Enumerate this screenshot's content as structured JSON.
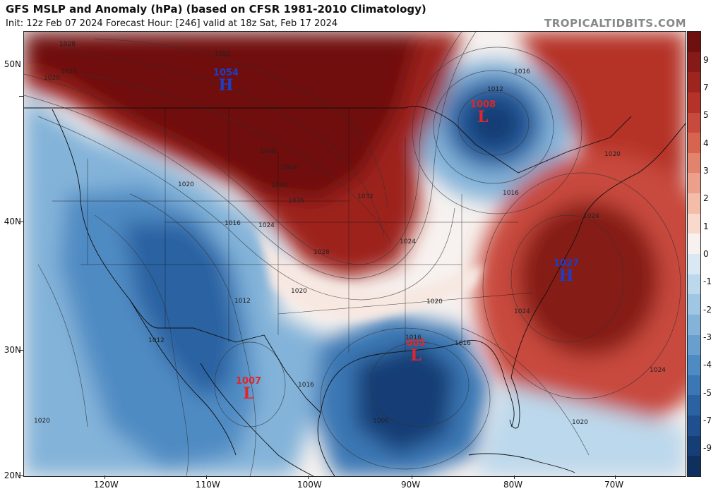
{
  "header": {
    "title": "GFS MSLP and Anomaly (hPa) (based on CFSR 1981-2010 Climatology)",
    "subtitle": "Init: 12z Feb 07 2024   Forecast Hour: [246]   valid at 18z Sat, Feb 17 2024",
    "site": "TROPICALTIDBITS.COM"
  },
  "colors": {
    "strong_positive": "#7a1414",
    "positive": "#c84a3c",
    "weak_positive": "#f2b9a5",
    "neutral": "#f7f2ef",
    "weak_negative": "#a9cce6",
    "negative": "#4a8ac4",
    "strong_negative": "#1c4d8c"
  },
  "colorbar": {
    "labels": [
      "9",
      "7",
      "5",
      "4",
      "3",
      "2",
      "1",
      "0",
      "-1",
      "-2",
      "-3",
      "-4",
      "-5",
      "-7",
      "-9"
    ],
    "segment_colors": [
      "#6f1010",
      "#861a18",
      "#9d241f",
      "#b53228",
      "#c84a3c",
      "#d66550",
      "#e2836d",
      "#ec9f8b",
      "#f3bda9",
      "#f8d9cc",
      "#f7f2ef",
      "#d9e8f3",
      "#bcd8ec",
      "#9fc6e3",
      "#83b3d9",
      "#689fcf",
      "#4f8bc3",
      "#3b77b4",
      "#2b62a2",
      "#1f4f8e",
      "#163e76",
      "#0f2f5e"
    ]
  },
  "axes": {
    "lat_labels": [
      "50N",
      "40N",
      "30N",
      "20N"
    ],
    "lon_labels": [
      "120W",
      "110W",
      "100W",
      "90W",
      "80W",
      "70W"
    ]
  },
  "centers": [
    {
      "type": "H",
      "value": "1054",
      "color": "#1a3fc9"
    },
    {
      "type": "L",
      "value": "1008",
      "color": "#e0262a"
    },
    {
      "type": "H",
      "value": "1027",
      "color": "#1a3fc9"
    },
    {
      "type": "L",
      "value": "005",
      "color": "#e0262a"
    },
    {
      "type": "L",
      "value": "1007",
      "color": "#e0262a"
    }
  ],
  "isobar_labels": [
    "1028",
    "1024",
    "1020",
    "1052",
    "1016",
    "1012",
    "1048",
    "1044",
    "1040",
    "1036",
    "1032",
    "1028",
    "1024",
    "1016",
    "1020",
    "1024",
    "1016",
    "1020",
    "1012",
    "1012",
    "1016",
    "1020",
    "1000",
    "1016",
    "1020",
    "1024",
    "1020",
    "1016",
    "1024",
    "1020",
    "1024"
  ]
}
